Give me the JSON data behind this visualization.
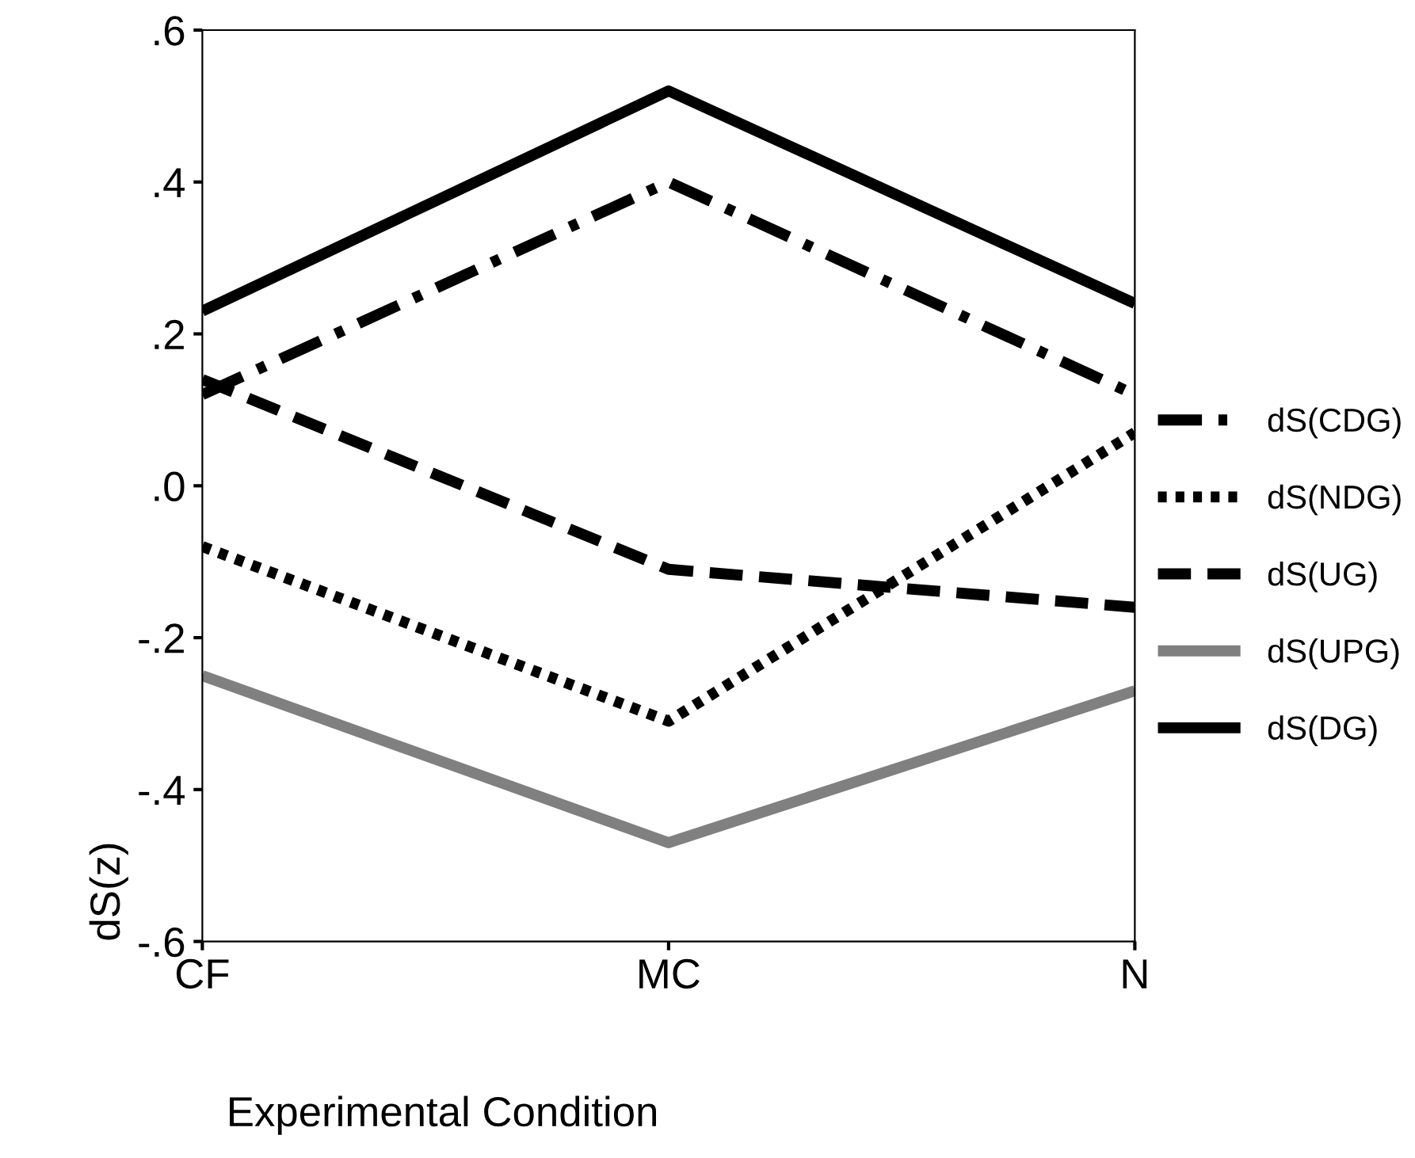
{
  "chart_data": {
    "type": "line",
    "xlabel": "Experimental Condition",
    "ylabel": "dS(z)",
    "categories": [
      "CF",
      "MC",
      "N"
    ],
    "ylim": [
      -0.6,
      0.6
    ],
    "yticks": [
      {
        "value": -0.6,
        "label": "-.6"
      },
      {
        "value": -0.4,
        "label": "-.4"
      },
      {
        "value": -0.2,
        "label": "-.2"
      },
      {
        "value": 0,
        "label": ".0"
      },
      {
        "value": 0.2,
        "label": ".2"
      },
      {
        "value": 0.4,
        "label": ".4"
      },
      {
        "value": 0.6,
        "label": ".6"
      }
    ],
    "legend": "right",
    "grid": false,
    "series": [
      {
        "name": "dS(CDG)",
        "color": "#000000",
        "line_style": "dashdot",
        "values": [
          0.12,
          0.4,
          0.12
        ]
      },
      {
        "name": "dS(NDG)",
        "color": "#000000",
        "line_style": "dotted",
        "values": [
          -0.08,
          -0.31,
          0.07
        ]
      },
      {
        "name": "dS(UG)",
        "color": "#000000",
        "line_style": "dashed",
        "values": [
          0.14,
          -0.11,
          -0.16
        ]
      },
      {
        "name": "dS(UPG)",
        "color": "#808080",
        "line_style": "solid",
        "values": [
          -0.25,
          -0.47,
          -0.27
        ]
      },
      {
        "name": "dS(DG)",
        "color": "#000000",
        "line_style": "solid",
        "values": [
          0.23,
          0.52,
          0.24
        ]
      }
    ]
  }
}
